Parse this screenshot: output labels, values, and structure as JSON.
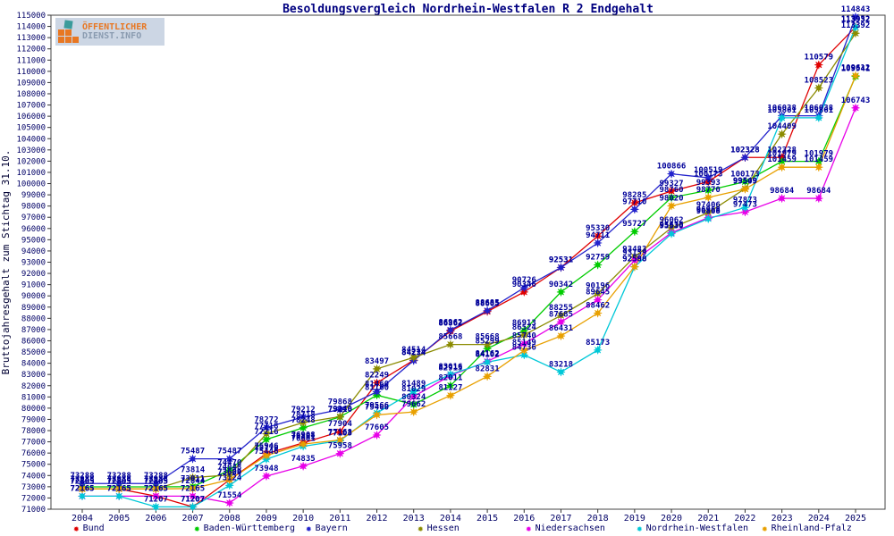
{
  "title": "Besoldungsvergleich Nordrhein-Westfalen R 2 Endgehalt",
  "y_axis_title": "Bruttojahresgehalt zum Stichtag 31.10.",
  "logo": {
    "line1": "ÖFFENTLICHER",
    "line2": "DIENST.INFO"
  },
  "colors": {
    "title_text": "#000080",
    "axis_text": "#000066",
    "data_label_text": "#000099",
    "logo_orange": "#e87722",
    "logo_teal": "#3a9b9b",
    "logo_gray": "#8a9bb0"
  },
  "chart_data": {
    "type": "line",
    "x": [
      2004,
      2005,
      2006,
      2007,
      2008,
      2009,
      2010,
      2011,
      2012,
      2013,
      2014,
      2015,
      2016,
      2017,
      2018,
      2019,
      2020,
      2021,
      2022,
      2023,
      2024,
      2025
    ],
    "ylim": [
      71000,
      115000
    ],
    "y_tick_step": 1000,
    "grid": false,
    "legend_position": "bottom",
    "marker": "star",
    "point_labels": true,
    "series": [
      {
        "name": "Bund",
        "color": "#e00000",
        "values": [
          72805,
          72805,
          72165,
          71207,
          73609,
          75946,
          76908,
          77904,
          82249,
          84274,
          86862,
          88605,
          90346,
          92531,
          95330,
          98285,
          99327,
          100173,
          102328,
          102328,
          110579,
          113952
        ]
      },
      {
        "name": "Baden-Württemberg",
        "color": "#00cc00",
        "values": [
          72988,
          72988,
          72988,
          73011,
          74470,
          77216,
          78248,
          79210,
          81160,
          80324,
          82011,
          85299,
          86913,
          90342,
          92759,
          95727,
          98760,
          99393,
          100173,
          101979,
          101979,
          109541
        ]
      },
      {
        "name": "Bayern",
        "color": "#2222cc",
        "values": [
          73288,
          73288,
          73288,
          75487,
          75487,
          78272,
          79212,
          79868,
          81460,
          84234,
          86962,
          88685,
          90726,
          92531,
          94711,
          97710,
          100866,
          100519,
          102328,
          106038,
          106038,
          114843
        ]
      },
      {
        "name": "Hessen",
        "color": "#8b8b00",
        "values": [
          72805,
          72805,
          72805,
          73814,
          74048,
          77718,
          78718,
          79240,
          83497,
          84514,
          85668,
          85668,
          86524,
          88255,
          90196,
          93483,
          96062,
          97406,
          99549,
          104409,
          108523,
          113392
        ]
      },
      {
        "name": "Niedersachsen",
        "color": "#e800e8",
        "values": [
          72165,
          72165,
          72165,
          72165,
          71554,
          73948,
          74835,
          75958,
          77605,
          81029,
          82915,
          84162,
          85740,
          87685,
          89645,
          93159,
          95630,
          96968,
          97473,
          98684,
          98684,
          106743
        ]
      },
      {
        "name": "Nordrhein-Westfalen",
        "color": "#00c8d8",
        "values": [
          72165,
          72165,
          71207,
          71207,
          73124,
          75446,
          76601,
          77103,
          79566,
          81489,
          83016,
          84102,
          84736,
          83218,
          85173,
          92588,
          95530,
          96868,
          97873,
          105861,
          105861,
          113932
        ]
      },
      {
        "name": "Rheinland-Pfalz",
        "color": "#e8a000",
        "values": [
          72805,
          72805,
          72805,
          72844,
          73624,
          75776,
          76801,
          77168,
          79400,
          79662,
          81127,
          82831,
          85149,
          86431,
          88462,
          92590,
          98020,
          98770,
          99509,
          101459,
          101459,
          109612
        ]
      }
    ]
  }
}
